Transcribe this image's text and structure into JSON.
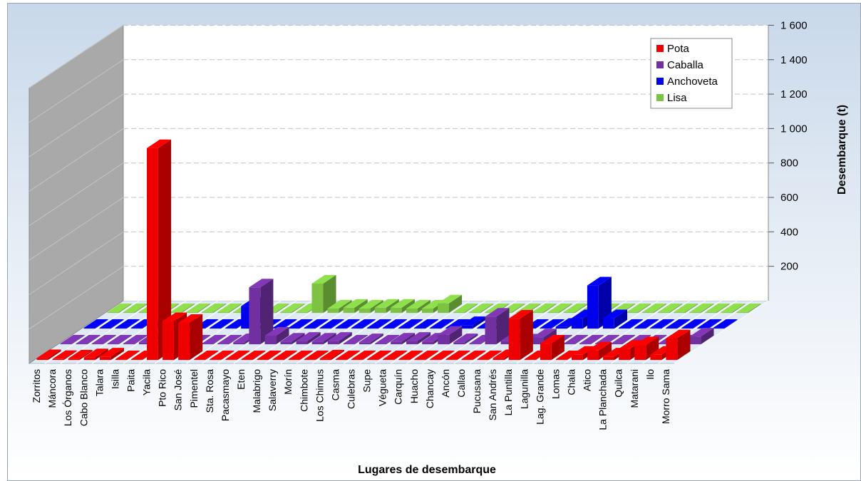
{
  "chart_data": {
    "type": "bar",
    "subtype": "3d-clustered",
    "title": "",
    "xlabel": "Lugares de desembarque",
    "ylabel": "Desembarque (t)",
    "ylim": [
      0,
      1600
    ],
    "yticks": [
      {
        "value": 200,
        "label": "200"
      },
      {
        "value": 400,
        "label": "400"
      },
      {
        "value": 600,
        "label": "600"
      },
      {
        "value": 800,
        "label": "800"
      },
      {
        "value": 1000,
        "label": "1 000"
      },
      {
        "value": 1200,
        "label": "1 200"
      },
      {
        "value": 1400,
        "label": "1 400"
      },
      {
        "value": 1600,
        "label": "1 600"
      }
    ],
    "grid": true,
    "legend_position": "top-right",
    "categories": [
      "Zorritos",
      "Máncora",
      "Los Órganos",
      "Cabo Blanco",
      "Talara",
      "Isilla",
      "Paita",
      "Yacila",
      "Pto Rico",
      "San José",
      "Pimentel",
      "Sta. Rosa",
      "Pacasmayo",
      "Eten",
      "Malabrigo",
      "Salaverry",
      "Morín",
      "Chimbote",
      "Los Chimus",
      "Casma",
      "Culebras",
      "Supe",
      "Végueta",
      "Carquín",
      "Huacho",
      "Chancay",
      "Ancón",
      "Callao",
      "Pucusana",
      "San Andrés",
      "La Puntilla",
      "Lagunilla",
      "Lag. Grande",
      "Lomas",
      "Chala",
      "Atico",
      "La Planchada",
      "Quilca",
      "Matarani",
      "Ilo",
      "Morro Sama"
    ],
    "series": [
      {
        "name": "Lisa",
        "color": "#7dc242",
        "values": [
          0,
          0,
          0,
          0,
          0,
          0,
          0,
          0,
          0,
          0,
          0,
          0,
          0,
          170,
          25,
          30,
          25,
          30,
          30,
          25,
          25,
          55,
          0,
          0,
          0,
          0,
          0,
          0,
          0,
          0,
          0,
          0,
          0,
          0,
          0,
          0,
          0,
          0,
          0,
          0,
          0
        ]
      },
      {
        "name": "Anchoveta",
        "color": "#0000ee",
        "values": [
          0,
          0,
          0,
          0,
          0,
          0,
          0,
          0,
          0,
          0,
          130,
          0,
          0,
          0,
          0,
          0,
          0,
          0,
          0,
          0,
          0,
          0,
          0,
          0,
          20,
          0,
          0,
          10,
          0,
          0,
          10,
          60,
          250,
          60,
          0,
          0,
          0,
          0,
          0,
          0,
          0
        ]
      },
      {
        "name": "Caballa",
        "color": "#7030a0",
        "values": [
          0,
          0,
          0,
          0,
          0,
          12,
          5,
          0,
          0,
          0,
          0,
          12,
          330,
          50,
          15,
          20,
          15,
          20,
          0,
          12,
          0,
          15,
          20,
          15,
          55,
          12,
          0,
          160,
          20,
          10,
          40,
          0,
          0,
          0,
          0,
          0,
          0,
          0,
          0,
          0,
          45
        ]
      },
      {
        "name": "Pota",
        "color": "#ee0000",
        "values": [
          10,
          5,
          8,
          15,
          20,
          0,
          0,
          1230,
          225,
          215,
          0,
          0,
          0,
          0,
          0,
          0,
          0,
          0,
          8,
          0,
          0,
          0,
          0,
          0,
          0,
          0,
          0,
          0,
          0,
          10,
          240,
          0,
          95,
          0,
          30,
          55,
          20,
          65,
          85,
          30,
          125
        ]
      }
    ]
  },
  "legend": {
    "entries": [
      "Pota",
      "Caballa",
      "Anchoveta",
      "Lisa"
    ],
    "colors": [
      "#ee0000",
      "#7030a0",
      "#0000ee",
      "#7dc242"
    ]
  }
}
